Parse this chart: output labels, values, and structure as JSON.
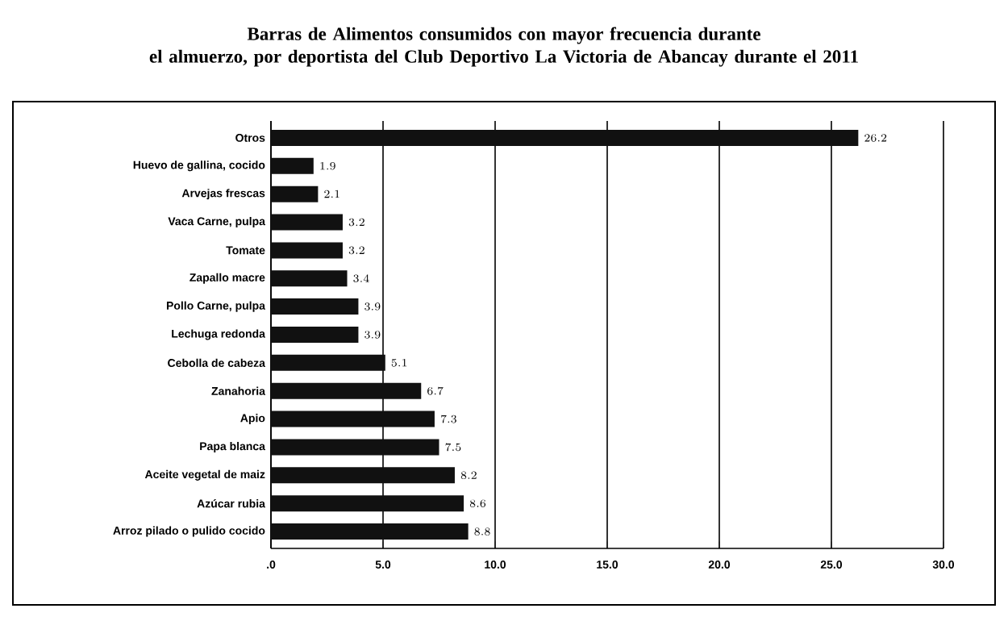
{
  "chart_data": {
    "type": "bar",
    "orientation": "horizontal",
    "title": "Barras de Alimentos consumidos con mayor frecuencia durante\nel almuerzo, por deportista del Club Deportivo La Victoria de Abancay durante el 2011",
    "categories": [
      "Otros",
      "Huevo de gallina, cocido",
      "Arvejas frescas",
      "Vaca Carne, pulpa",
      "Tomate",
      "Zapallo macre",
      "Pollo Carne, pulpa",
      "Lechuga redonda",
      "Cebolla de cabeza",
      "Zanahoria",
      "Apio",
      "Papa blanca",
      "Aceite vegetal de maiz",
      "Azúcar rubia",
      "Arroz pilado o pulido cocido"
    ],
    "values": [
      26.2,
      1.9,
      2.1,
      3.2,
      3.2,
      3.4,
      3.9,
      3.9,
      5.1,
      6.7,
      7.3,
      7.5,
      8.2,
      8.6,
      8.8
    ],
    "color": "#111111",
    "xlim": [
      0,
      30
    ],
    "xticks": [
      {
        "value": 0,
        "label": ".0"
      },
      {
        "value": 5,
        "label": "5.0"
      },
      {
        "value": 10,
        "label": "10.0"
      },
      {
        "value": 15,
        "label": "15.0"
      },
      {
        "value": 20,
        "label": "20.0"
      },
      {
        "value": 25,
        "label": "25.0"
      },
      {
        "value": 30,
        "label": "30.0"
      }
    ],
    "grid": "x",
    "data_labels": true
  }
}
